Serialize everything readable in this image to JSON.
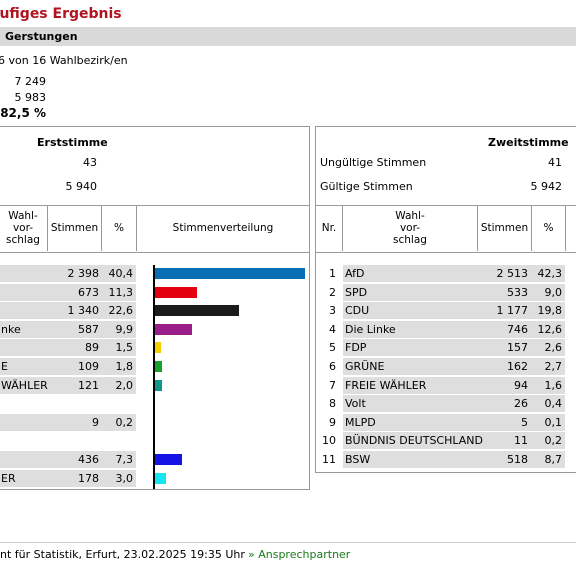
{
  "page": {
    "title": "äufiges Ergebnis",
    "gemeinde": "Gerstungen",
    "wahlbezirke_text": "6 von 16   Wahlbezirk/en",
    "wahlberechtigte": "7 249",
    "waehler": "5 983",
    "wahlbeteiligung": "82,5 %"
  },
  "erststimme": {
    "title": "Erststimme",
    "ungueltig": "43",
    "gueltig": "5 940",
    "headers": {
      "wahlvorschlag": "Wahl-\nvor-\nschlag",
      "stimmen": "Stimmen",
      "prozent": "%",
      "verteilung": "Stimmenverteilung"
    },
    "rows": [
      {
        "name": "",
        "stimmen": "2 398",
        "prozent": "40,4",
        "pct": 40.4,
        "color": "#0a6eb4"
      },
      {
        "name": "",
        "stimmen": "673",
        "prozent": "11,3",
        "pct": 11.3,
        "color": "#e3000f"
      },
      {
        "name": "",
        "stimmen": "1 340",
        "prozent": "22,6",
        "pct": 22.6,
        "color": "#1b1b1b"
      },
      {
        "name": "nke",
        "stimmen": "587",
        "prozent": "9,9",
        "pct": 9.9,
        "color": "#9b1d8a"
      },
      {
        "name": "",
        "stimmen": "89",
        "prozent": "1,5",
        "pct": 1.5,
        "color": "#f5d000"
      },
      {
        "name": "E",
        "stimmen": "109",
        "prozent": "1,8",
        "pct": 1.8,
        "color": "#19a229"
      },
      {
        "name": " WÄHLER",
        "stimmen": "121",
        "prozent": "2,0",
        "pct": 2.0,
        "color": "#12988a"
      },
      {
        "name": "",
        "stimmen": "",
        "prozent": "",
        "pct": 0,
        "color": "#ffffff"
      },
      {
        "name": "",
        "stimmen": "9",
        "prozent": "0,2",
        "pct": 0.2,
        "color": "#ffffff"
      },
      {
        "name": "",
        "stimmen": "",
        "prozent": "",
        "pct": 0,
        "color": "#ffffff"
      },
      {
        "name": "",
        "stimmen": "436",
        "prozent": "7,3",
        "pct": 7.3,
        "color": "#1414e6"
      },
      {
        "name": "ER",
        "stimmen": "178",
        "prozent": "3,0",
        "pct": 3.0,
        "color": "#14e6f0"
      }
    ]
  },
  "zweitstimme": {
    "title": "Zweitstimme",
    "ungueltig_label": "Ungültige Stimmen",
    "ungueltig": "41",
    "gueltig_label": "Gültige Stimmen",
    "gueltig": "5 942",
    "headers": {
      "nr": "Nr.",
      "wahlvorschlag": "Wahl-\nvor-\nschlag",
      "stimmen": "Stimmen",
      "prozent": "%"
    },
    "rows": [
      {
        "nr": "1",
        "name": "AfD",
        "stimmen": "2 513",
        "prozent": "42,3"
      },
      {
        "nr": "2",
        "name": "SPD",
        "stimmen": "533",
        "prozent": "9,0"
      },
      {
        "nr": "3",
        "name": "CDU",
        "stimmen": "1 177",
        "prozent": "19,8"
      },
      {
        "nr": "4",
        "name": "Die Linke",
        "stimmen": "746",
        "prozent": "12,6"
      },
      {
        "nr": "5",
        "name": "FDP",
        "stimmen": "157",
        "prozent": "2,6"
      },
      {
        "nr": "6",
        "name": "GRÜNE",
        "stimmen": "162",
        "prozent": "2,7"
      },
      {
        "nr": "7",
        "name": "FREIE WÄHLER",
        "stimmen": "94",
        "prozent": "1,6"
      },
      {
        "nr": "8",
        "name": "Volt",
        "stimmen": "26",
        "prozent": "0,4"
      },
      {
        "nr": "9",
        "name": "MLPD",
        "stimmen": "5",
        "prozent": "0,1"
      },
      {
        "nr": "10",
        "name": "BÜNDNIS DEUTSCHLAND",
        "stimmen": "11",
        "prozent": "0,2"
      },
      {
        "nr": "11",
        "name": "BSW",
        "stimmen": "518",
        "prozent": "8,7"
      }
    ]
  },
  "footer": {
    "text": "nt für Statistik, Erfurt, 23.02.2025 19:35 Uhr",
    "link": "» Ansprechpartner"
  }
}
